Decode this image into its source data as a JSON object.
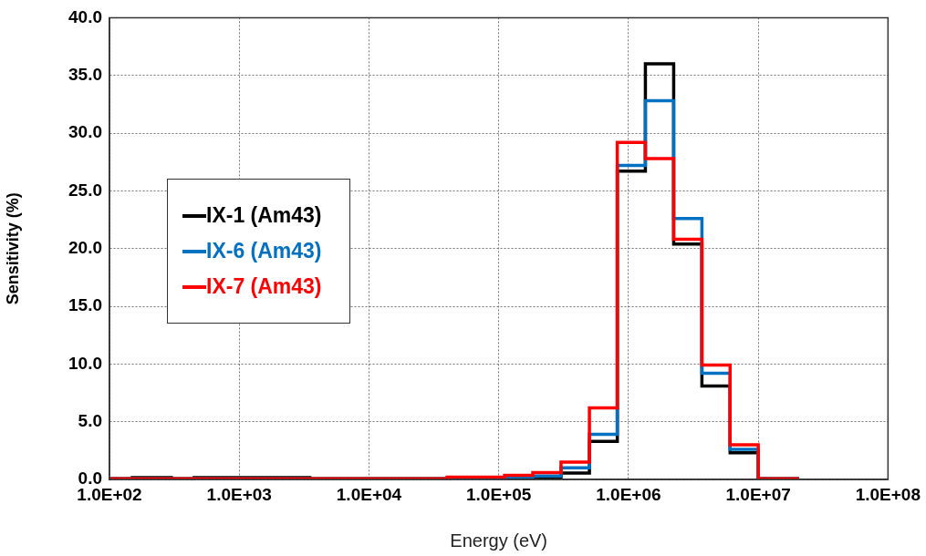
{
  "chart_data": {
    "type": "histogram",
    "xlabel": "Energy (eV)",
    "ylabel": "Sensitivity (%)",
    "bins": [
      100,
      150,
      300,
      450,
      3500,
      40000,
      111000,
      183000,
      302000,
      500000,
      820000,
      1350000,
      2230000,
      3680000,
      6070000,
      10000000,
      20000000
    ],
    "series": [
      {
        "name": "IX-1 (Am43)",
        "color": "#000000",
        "values": [
          0.05,
          0.15,
          0.05,
          0.15,
          0.05,
          0.1,
          0.1,
          0.2,
          0.55,
          3.3,
          26.7,
          36.0,
          20.4,
          8.1,
          2.3,
          0.05
        ]
      },
      {
        "name": "IX-6 (Am43)",
        "color": "#0070c0",
        "values": [
          0.05,
          0.05,
          0.05,
          0.05,
          0.05,
          0.1,
          0.2,
          0.3,
          1.0,
          3.9,
          27.2,
          32.8,
          22.6,
          9.2,
          2.6,
          0.05
        ]
      },
      {
        "name": "IX-7 (Am43)",
        "color": "#ff0000",
        "values": [
          0.05,
          0.05,
          0.05,
          0.05,
          0.05,
          0.2,
          0.35,
          0.6,
          1.5,
          6.2,
          29.2,
          27.8,
          20.8,
          9.9,
          3.0,
          0.05
        ]
      }
    ],
    "log": "x",
    "xlim": [
      100,
      100000000
    ],
    "xticks": [
      {
        "value": 100,
        "label": "1.0E+02"
      },
      {
        "value": 1000,
        "label": "1.0E+03"
      },
      {
        "value": 10000,
        "label": "1.0E+04"
      },
      {
        "value": 100000,
        "label": "1.0E+05"
      },
      {
        "value": 1000000,
        "label": "1.0E+06"
      },
      {
        "value": 10000000,
        "label": "1.0E+07"
      },
      {
        "value": 100000000,
        "label": "1.0E+08"
      }
    ],
    "ylim": [
      0,
      40
    ],
    "yticks": [
      {
        "value": 0,
        "label": "0.0"
      },
      {
        "value": 5,
        "label": "5.0"
      },
      {
        "value": 10,
        "label": "10.0"
      },
      {
        "value": 15,
        "label": "15.0"
      },
      {
        "value": 20,
        "label": "20.0"
      },
      {
        "value": 25,
        "label": "25.0"
      },
      {
        "value": 30,
        "label": "30.0"
      },
      {
        "value": 35,
        "label": "35.0"
      },
      {
        "value": 40,
        "label": "40.0"
      }
    ],
    "grid": true,
    "legend": "center left"
  }
}
